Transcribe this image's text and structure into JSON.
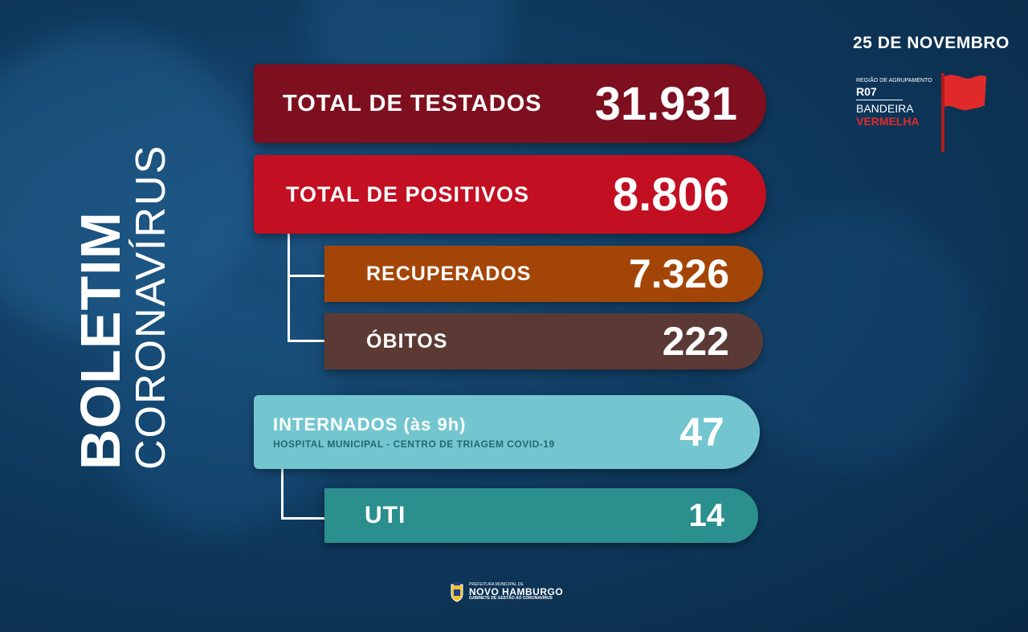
{
  "title": {
    "bold": "BOLETIM",
    "light": "CORONAVÍRUS"
  },
  "date": "25 DE NOVEMBRO",
  "region": {
    "small": "REGIÃO DE AGRUPAMENTO",
    "code": "R07",
    "line1": "BANDEIRA",
    "line2": "VERMELHA",
    "flag_color": "#e02a2a",
    "flag_icon": "red-flag-icon"
  },
  "stats": {
    "testados": {
      "label": "TOTAL DE TESTADOS",
      "value": "31.931",
      "color": "#7e0f1f"
    },
    "positivos": {
      "label": "TOTAL DE POSITIVOS",
      "value": "8.806",
      "color": "#c30f22"
    },
    "recuperados": {
      "label": "RECUPERADOS",
      "value": "7.326",
      "color": "#a44508"
    },
    "obitos": {
      "label": "ÓBITOS",
      "value": "222",
      "color": "#5b3a35"
    },
    "internados": {
      "label": "INTERNADOS (às 9h)",
      "sub": "HOSPITAL MUNICIPAL - CENTRO DE TRIAGEM COVID-19",
      "value": "47",
      "color": "#73c6cf"
    },
    "uti": {
      "label": "UTI",
      "value": "14",
      "color": "#2b8f8e"
    }
  },
  "footer": {
    "line1": "PREFEITURA MUNICIPAL DE",
    "line2": "NOVO HAMBURGO",
    "line3": "GABINETE DE GESTÃO AO CORONAVÍRUS",
    "crest_icon": "city-crest-icon"
  }
}
